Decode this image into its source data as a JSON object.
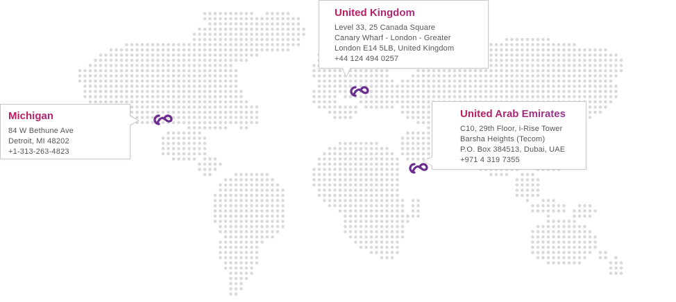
{
  "colors": {
    "dot": "#d9d9db",
    "title_gradient_start": "#c2185b",
    "title_gradient_end": "#8e3a9e",
    "marker": "#6a2d8f",
    "border": "#c9c9c9",
    "text": "#555555"
  },
  "marker_icon": "ce-logo-icon",
  "offices": [
    {
      "title": "Michigan",
      "lines": [
        "84 W Bethune Ave",
        "Detroit, MI 48202",
        "+1-313-263-4823"
      ]
    },
    {
      "title": "United Kingdom",
      "lines": [
        "Level 33, 25 Canada Square",
        "Canary Wharf - London - Greater",
        "London E14 5LB, United Kingdom",
        "+44 124 494 0257"
      ]
    },
    {
      "title": "United Arab Emirates",
      "lines": [
        "C10, 29th Floor, i-Rise Tower",
        "Barsha Heights (Tecom)",
        "P.O. Box 384513, Dubai, UAE",
        "+971 4 319 7355"
      ]
    }
  ]
}
